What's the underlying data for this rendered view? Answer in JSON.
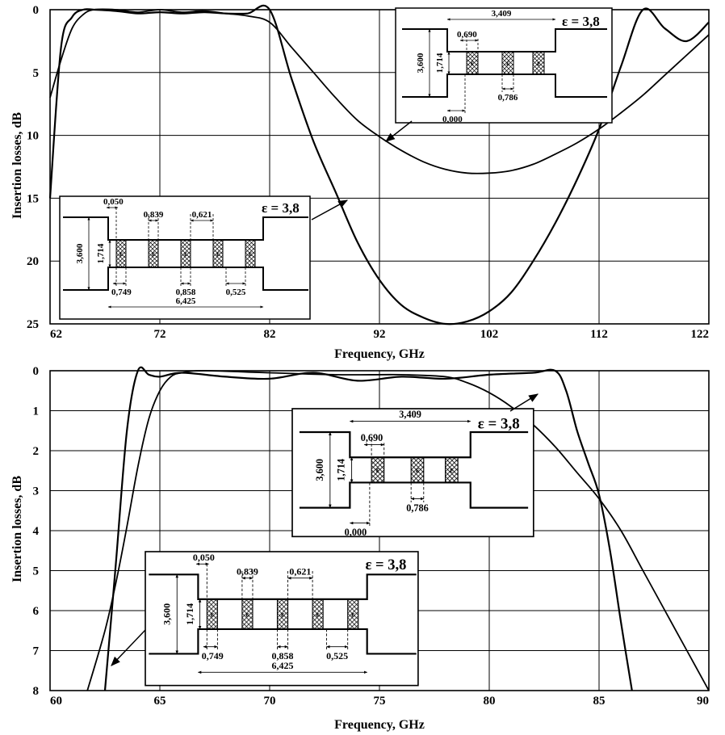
{
  "chart_data": [
    {
      "type": "line",
      "xlabel": "Frequency, GHz",
      "ylabel": "Insertion losses, dB",
      "xlim": [
        62,
        122
      ],
      "ylim": [
        0,
        25
      ],
      "y_inverted": true,
      "grid": true,
      "xticks": [
        "62",
        "72",
        "82",
        "92",
        "102",
        "112",
        "122"
      ],
      "yticks": [
        "0",
        "5",
        "10",
        "15",
        "20",
        "25"
      ],
      "series": [
        {
          "x": [
            62,
            63,
            64,
            65,
            66,
            68,
            70,
            72,
            74,
            76,
            78,
            80,
            82,
            84,
            86,
            88,
            90,
            92,
            94,
            96,
            98,
            100,
            102,
            104,
            106,
            108,
            110,
            112,
            114,
            116,
            118,
            120,
            122
          ],
          "y": [
            15,
            3,
            0.6,
            0,
            0,
            0.1,
            0.3,
            0.2,
            0.3,
            0.2,
            0.3,
            0.3,
            0,
            5.5,
            10.5,
            14.5,
            18.5,
            21.5,
            23.5,
            24.5,
            25,
            24.8,
            24,
            22.5,
            20,
            17,
            13.5,
            9.5,
            4.5,
            0,
            1.5,
            2.5,
            1
          ]
        },
        {
          "x": [
            62,
            63,
            64,
            65,
            66,
            68,
            70,
            72,
            74,
            76,
            78,
            80,
            82,
            84,
            86,
            88,
            90,
            92,
            94,
            96,
            98,
            100,
            102,
            104,
            106,
            108,
            110,
            112,
            114,
            116,
            118,
            120,
            122
          ],
          "y": [
            7,
            4,
            1.5,
            0.4,
            0,
            0,
            0.2,
            0,
            0.2,
            0.1,
            0.3,
            0.5,
            1,
            3,
            5,
            7,
            8.8,
            10.1,
            11.2,
            12.1,
            12.7,
            13,
            13,
            12.8,
            12.3,
            11.5,
            10.6,
            9.5,
            8.2,
            6.8,
            5.2,
            3.6,
            2
          ]
        }
      ],
      "annotations": [
        {
          "label": "ε = 3,8",
          "dimensions": [
            "3,409",
            "0,690",
            "0,786",
            "0,000",
            "3,600",
            "1,714"
          ]
        },
        {
          "label": "ε = 3,8",
          "dimensions": [
            "0,050",
            "0,839",
            "0,621",
            "0,749",
            "0,858",
            "0,525",
            "6,425",
            "3,600",
            "1,714"
          ]
        }
      ]
    },
    {
      "type": "line",
      "xlabel": "Frequency, GHz",
      "ylabel": "Insertion losses, dB",
      "xlim": [
        60,
        90
      ],
      "ylim": [
        0,
        8
      ],
      "y_inverted": true,
      "grid": true,
      "xticks": [
        "60",
        "65",
        "70",
        "75",
        "80",
        "85",
        "90"
      ],
      "yticks": [
        "0",
        "1",
        "2",
        "3",
        "4",
        "5",
        "6",
        "7",
        "8"
      ],
      "series": [
        {
          "x": [
            62.5,
            63,
            63.5,
            64,
            64.5,
            65,
            66,
            68,
            70,
            72,
            74,
            76,
            78,
            80,
            82,
            83,
            83.5,
            84,
            84.5,
            85,
            85.5,
            86,
            86.5
          ],
          "y": [
            8,
            4.8,
            1.5,
            0,
            0.1,
            0.15,
            0.05,
            0.15,
            0.2,
            0.05,
            0.25,
            0.15,
            0.2,
            0.1,
            0.05,
            0,
            0.5,
            1.5,
            2.3,
            3.1,
            4.5,
            6.3,
            8
          ]
        },
        {
          "x": [
            61.7,
            62.5,
            63,
            63.5,
            64,
            64.5,
            65,
            65.5,
            66,
            67,
            70,
            73,
            76,
            78,
            79,
            80,
            81,
            82,
            83,
            84,
            85,
            86,
            87,
            88,
            89,
            90
          ],
          "y": [
            8,
            6.5,
            5.3,
            3.9,
            2.4,
            1.2,
            0.5,
            0.15,
            0.05,
            0,
            0.05,
            0.1,
            0.1,
            0.15,
            0.3,
            0.55,
            0.9,
            1.35,
            1.9,
            2.55,
            3.2,
            4,
            5,
            6,
            7,
            8
          ]
        }
      ],
      "annotations": [
        {
          "label": "ε = 3,8",
          "dimensions": [
            "3,409",
            "0,690",
            "0,786",
            "0,000",
            "3,600",
            "1,714"
          ]
        },
        {
          "label": "ε = 3,8",
          "dimensions": [
            "0,050",
            "0,839",
            "0,621",
            "0,749",
            "0,858",
            "0,525",
            "6,425",
            "3,600",
            "1,714"
          ]
        }
      ]
    }
  ],
  "insets": {
    "eps_symbol": "ε",
    "eps_value": "= 3,8",
    "cell_label": "ε",
    "three": {
      "length": "3,409",
      "gap": "0,690",
      "width": "0,786",
      "offset": "0,000",
      "h_outer": "3,600",
      "h_inner": "1,714"
    },
    "five": {
      "offset": "0,050",
      "gap1": "0,839",
      "gap2": "0,621",
      "w1": "0,749",
      "w2": "0,858",
      "w3": "0,525",
      "length": "6,425",
      "h_outer": "3,600",
      "h_inner": "1,714"
    }
  }
}
